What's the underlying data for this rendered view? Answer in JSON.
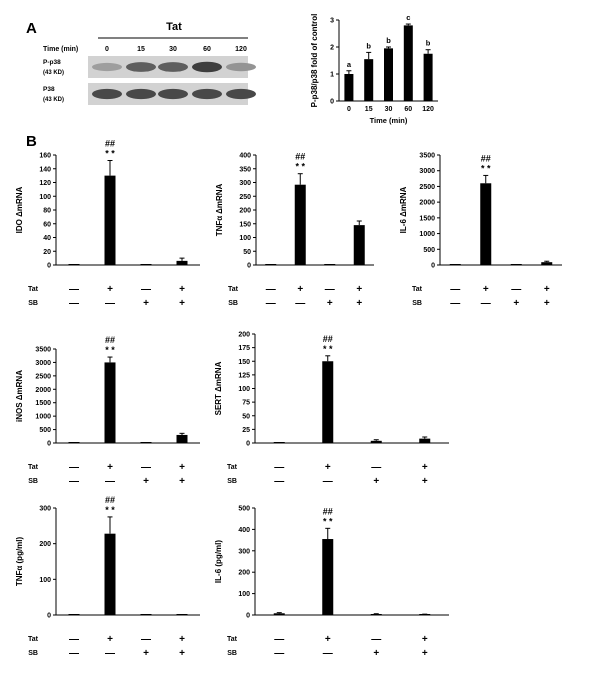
{
  "panels": {
    "a": "A",
    "b": "B"
  },
  "blot": {
    "header": "Tat",
    "time_label": "Time (min)",
    "times": [
      "0",
      "15",
      "30",
      "60",
      "120"
    ],
    "rows": [
      {
        "label": "P-p38",
        "sub": "(43 KD)",
        "intensity": [
          0.45,
          0.75,
          0.75,
          0.9,
          0.5
        ]
      },
      {
        "label": "P38",
        "sub": "(43 KD)",
        "intensity": [
          0.85,
          0.85,
          0.85,
          0.85,
          0.85
        ]
      }
    ]
  },
  "chart_data": [
    {
      "id": "p38",
      "type": "bar",
      "ylabel": "P-p38/p38 fold of control",
      "xlabel": "Time (min)",
      "categories": [
        "0",
        "15",
        "30",
        "60",
        "120"
      ],
      "values": [
        1.0,
        1.55,
        1.95,
        2.8,
        1.75
      ],
      "errors": [
        0.12,
        0.25,
        0.05,
        0.05,
        0.15
      ],
      "letters": [
        "a",
        "b",
        "b",
        "c",
        "b"
      ],
      "ylim": [
        0,
        3
      ],
      "yticks": [
        0,
        1,
        2,
        3
      ]
    },
    {
      "id": "ido",
      "type": "bar",
      "ylabel": "IDO ΔmRNA",
      "values": [
        0.5,
        130,
        0.5,
        6
      ],
      "errors": [
        0,
        22,
        0,
        4
      ],
      "ylim": [
        0,
        160
      ],
      "yticks": [
        0,
        20,
        40,
        60,
        80,
        100,
        120,
        140,
        160
      ],
      "hash": "##",
      "stars": "* *",
      "mark_bar": 1,
      "tat": [
        "—",
        "+",
        "—",
        "+"
      ],
      "sb": [
        "—",
        "—",
        "+",
        "+"
      ]
    },
    {
      "id": "tnf",
      "type": "bar",
      "ylabel": "TNFα ΔmRNA",
      "values": [
        1,
        292,
        3,
        145
      ],
      "errors": [
        0,
        40,
        0,
        15
      ],
      "ylim": [
        0,
        400
      ],
      "yticks": [
        0,
        50,
        100,
        150,
        200,
        250,
        300,
        350,
        400
      ],
      "hash": "##",
      "stars": "* *",
      "mark_bar": 1,
      "tat": [
        "—",
        "+",
        "—",
        "+"
      ],
      "sb": [
        "—",
        "—",
        "+",
        "+"
      ]
    },
    {
      "id": "il6",
      "type": "bar",
      "ylabel": "IL-6 ΔmRNA",
      "values": [
        0,
        2600,
        0,
        90
      ],
      "errors": [
        0,
        250,
        0,
        30
      ],
      "ylim": [
        0,
        3500
      ],
      "yticks": [
        0,
        500,
        1000,
        1500,
        2000,
        2500,
        3000,
        3500
      ],
      "hash": "##",
      "stars": "* *",
      "mark_bar": 1,
      "tat": [
        "—",
        "+",
        "—",
        "+"
      ],
      "sb": [
        "—",
        "—",
        "+",
        "+"
      ]
    },
    {
      "id": "inos",
      "type": "bar",
      "ylabel": "iNOS ΔmRNA",
      "values": [
        0,
        3000,
        0,
        300
      ],
      "errors": [
        0,
        200,
        0,
        60
      ],
      "ylim": [
        0,
        3500
      ],
      "yticks": [
        0,
        500,
        1000,
        1500,
        2000,
        2500,
        3000,
        3500
      ],
      "hash": "##",
      "stars": "* *",
      "mark_bar": 1,
      "tat": [
        "—",
        "+",
        "—",
        "+"
      ],
      "sb": [
        "—",
        "—",
        "+",
        "+"
      ]
    },
    {
      "id": "sert",
      "type": "bar",
      "ylabel": "SERT ΔmRNA",
      "values": [
        1,
        150,
        4,
        8
      ],
      "errors": [
        0,
        10,
        2,
        3
      ],
      "ylim": [
        0,
        200
      ],
      "yticks": [
        0,
        25,
        50,
        75,
        100,
        125,
        150,
        175,
        200
      ],
      "hash": "##",
      "stars": "* *",
      "mark_bar": 1,
      "tat": [
        "—",
        "+",
        "—",
        "+"
      ],
      "sb": [
        "—",
        "—",
        "+",
        "+"
      ]
    },
    {
      "id": "tnfp",
      "type": "bar",
      "ylabel": "TNFα (pg/ml)",
      "values": [
        0,
        228,
        0,
        0
      ],
      "errors": [
        0,
        47,
        0,
        0
      ],
      "ylim": [
        0,
        300
      ],
      "yticks": [
        0,
        100,
        200,
        300
      ],
      "hash": "##",
      "stars": "* *",
      "mark_bar": 1,
      "tat": [
        "—",
        "+",
        "—",
        "+"
      ],
      "sb": [
        "—",
        "—",
        "+",
        "+"
      ]
    },
    {
      "id": "il6p",
      "type": "bar",
      "ylabel": "IL-6 (pg/ml)",
      "values": [
        8,
        355,
        4,
        3
      ],
      "errors": [
        3,
        50,
        2,
        1
      ],
      "ylim": [
        0,
        500
      ],
      "yticks": [
        0,
        100,
        200,
        300,
        400,
        500
      ],
      "hash": "##",
      "stars": "* *",
      "mark_bar": 1,
      "tat": [
        "—",
        "+",
        "—",
        "+"
      ],
      "sb": [
        "—",
        "—",
        "+",
        "+"
      ]
    }
  ],
  "row_labels": {
    "tat": "Tat",
    "sb": "SB"
  }
}
